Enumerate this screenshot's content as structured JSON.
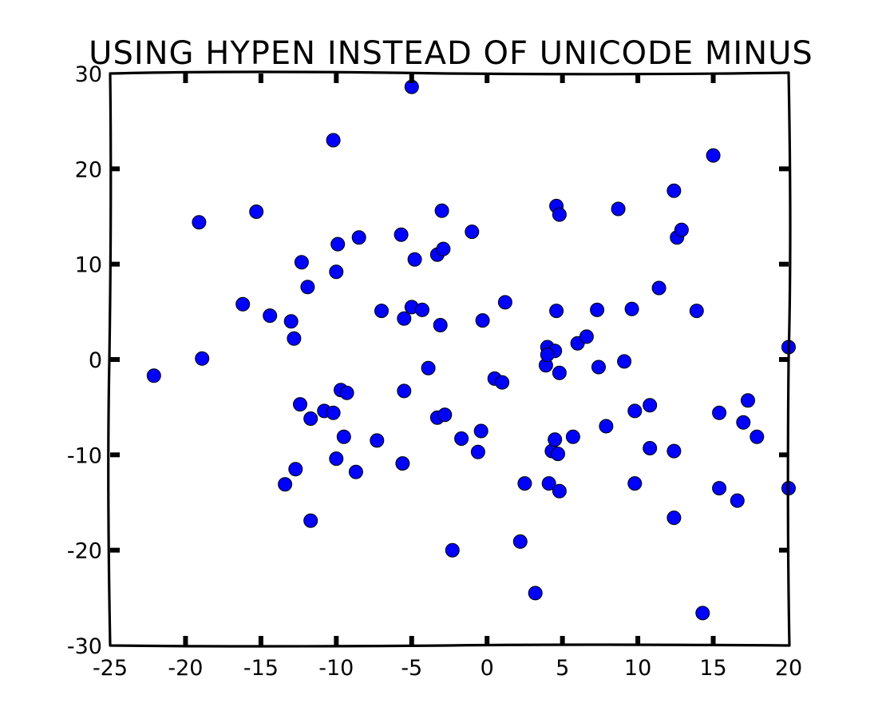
{
  "chart_data": {
    "type": "scatter",
    "title": "USING HYPEN INSTEAD OF UNICODE MINUS",
    "xlabel": "",
    "ylabel": "",
    "xlim": [
      -25,
      20
    ],
    "ylim": [
      -30,
      30
    ],
    "grid": false,
    "x_ticks": [
      -25,
      -20,
      -15,
      -10,
      -5,
      0,
      5,
      10,
      15,
      20
    ],
    "x_tick_labels": [
      "-25",
      "-20",
      "-15",
      "-10",
      "-5",
      "0",
      "5",
      "10",
      "15",
      "20"
    ],
    "y_ticks": [
      -30,
      -20,
      -10,
      0,
      10,
      20,
      30
    ],
    "y_tick_labels": [
      "-30",
      "-20",
      "-10",
      "0",
      "10",
      "20",
      "30"
    ],
    "marker_color": "#0000ff",
    "edge_color": "#000000",
    "series": [
      {
        "points": [
          [
            -22.1,
            -1.7
          ],
          [
            -18.9,
            0.1
          ],
          [
            -19.1,
            14.4
          ],
          [
            -15.3,
            15.5
          ],
          [
            -16.2,
            5.8
          ],
          [
            -14.4,
            4.6
          ],
          [
            -13.0,
            4.0
          ],
          [
            -12.8,
            2.2
          ],
          [
            -12.3,
            10.2
          ],
          [
            -11.9,
            7.6
          ],
          [
            -9.9,
            12.1
          ],
          [
            -10.0,
            9.2
          ],
          [
            -8.5,
            12.8
          ],
          [
            -10.2,
            23.0
          ],
          [
            -7.0,
            5.1
          ],
          [
            -5.7,
            13.1
          ],
          [
            -5.0,
            5.5
          ],
          [
            -4.8,
            10.5
          ],
          [
            -4.3,
            5.2
          ],
          [
            -3.3,
            11.0
          ],
          [
            -2.9,
            11.6
          ],
          [
            -3.0,
            15.6
          ],
          [
            -1.0,
            13.4
          ],
          [
            -3.1,
            3.6
          ],
          [
            -5.5,
            4.3
          ],
          [
            -0.3,
            4.1
          ],
          [
            1.2,
            6.0
          ],
          [
            -3.9,
            -0.9
          ],
          [
            0.5,
            -2.0
          ],
          [
            1.0,
            -2.4
          ],
          [
            -12.4,
            -4.7
          ],
          [
            -11.7,
            -6.2
          ],
          [
            -10.8,
            -5.4
          ],
          [
            -10.2,
            -5.6
          ],
          [
            -9.7,
            -3.2
          ],
          [
            -9.3,
            -3.5
          ],
          [
            -9.5,
            -8.1
          ],
          [
            -7.3,
            -8.5
          ],
          [
            -5.5,
            -3.3
          ],
          [
            -3.3,
            -6.1
          ],
          [
            -2.8,
            -5.8
          ],
          [
            -1.7,
            -8.3
          ],
          [
            -0.4,
            -7.5
          ],
          [
            -0.6,
            -9.7
          ],
          [
            -13.4,
            -13.1
          ],
          [
            -12.7,
            -11.5
          ],
          [
            -10.0,
            -10.4
          ],
          [
            -8.7,
            -11.8
          ],
          [
            -5.6,
            -10.9
          ],
          [
            -11.7,
            -16.9
          ],
          [
            -2.3,
            -20.0
          ],
          [
            2.2,
            -19.1
          ],
          [
            2.5,
            -13.0
          ],
          [
            3.2,
            -24.5
          ],
          [
            4.1,
            -13.0
          ],
          [
            4.8,
            -13.8
          ],
          [
            4.3,
            -9.6
          ],
          [
            4.7,
            -9.9
          ],
          [
            4.5,
            -8.4
          ],
          [
            5.7,
            -8.1
          ],
          [
            3.9,
            -0.6
          ],
          [
            4.0,
            1.3
          ],
          [
            4.5,
            0.9
          ],
          [
            4.0,
            0.5
          ],
          [
            4.8,
            -1.4
          ],
          [
            6.0,
            1.7
          ],
          [
            6.6,
            2.4
          ],
          [
            7.4,
            -0.8
          ],
          [
            7.3,
            5.2
          ],
          [
            4.6,
            5.1
          ],
          [
            4.6,
            16.1
          ],
          [
            4.8,
            15.2
          ],
          [
            8.7,
            15.8
          ],
          [
            9.6,
            5.3
          ],
          [
            9.1,
            -0.2
          ],
          [
            9.8,
            -5.4
          ],
          [
            10.8,
            -4.8
          ],
          [
            11.4,
            7.5
          ],
          [
            12.4,
            17.7
          ],
          [
            12.6,
            12.8
          ],
          [
            12.9,
            13.6
          ],
          [
            13.9,
            5.1
          ],
          [
            15.0,
            21.4
          ],
          [
            7.9,
            -7.0
          ],
          [
            10.8,
            -9.3
          ],
          [
            9.8,
            -13.0
          ],
          [
            12.4,
            -9.6
          ],
          [
            12.4,
            -16.6
          ],
          [
            14.3,
            -26.6
          ],
          [
            15.4,
            -5.6
          ],
          [
            15.4,
            -13.5
          ],
          [
            16.6,
            -14.8
          ],
          [
            17.0,
            -6.6
          ],
          [
            17.3,
            -4.3
          ],
          [
            17.9,
            -8.1
          ],
          [
            20.0,
            1.3
          ],
          [
            20.0,
            -13.5
          ],
          [
            -5.0,
            28.6
          ]
        ]
      }
    ]
  }
}
